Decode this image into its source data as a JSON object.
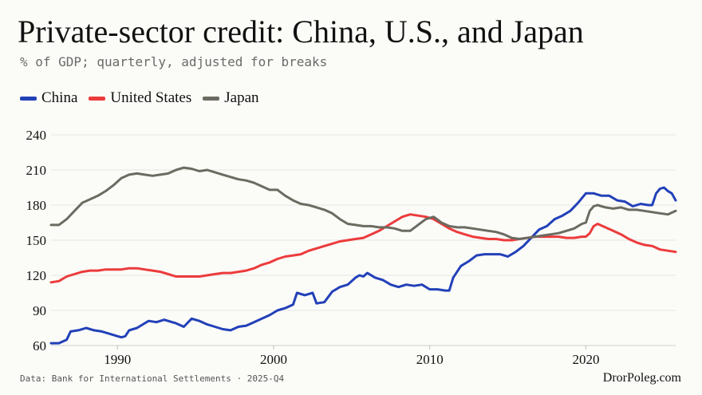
{
  "title": "Private-sector credit: China, U.S., and Japan",
  "subtitle": "% of GDP; quarterly, adjusted for breaks",
  "source": "Data: Bank for International Settlements · 2025-Q4",
  "brand": "DrorPoleg.com",
  "chart_data": {
    "type": "line",
    "xlim": [
      1985.75,
      2025.75
    ],
    "ylim": [
      60,
      240
    ],
    "yticks": [
      "60",
      "90",
      "120",
      "150",
      "180",
      "210",
      "240"
    ],
    "xticks": [
      "1990",
      "2000",
      "2010",
      "2020"
    ],
    "grid": "horizontal",
    "legend_position": "top-left",
    "series": [
      {
        "name": "China",
        "color": "#2240b8",
        "points": [
          [
            1985.75,
            62
          ],
          [
            1986.25,
            62
          ],
          [
            1986.75,
            65
          ],
          [
            1987,
            72
          ],
          [
            1987.5,
            73
          ],
          [
            1988,
            75
          ],
          [
            1988.5,
            73
          ],
          [
            1989,
            72
          ],
          [
            1989.5,
            70
          ],
          [
            1990,
            68
          ],
          [
            1990.25,
            67
          ],
          [
            1990.5,
            68
          ],
          [
            1990.75,
            73
          ],
          [
            1991.25,
            75
          ],
          [
            1991.75,
            79
          ],
          [
            1992,
            81
          ],
          [
            1992.5,
            80
          ],
          [
            1993,
            82
          ],
          [
            1993.5,
            80
          ],
          [
            1993.75,
            79
          ],
          [
            1994.25,
            76
          ],
          [
            1994.75,
            83
          ],
          [
            1995.25,
            81
          ],
          [
            1995.75,
            78
          ],
          [
            1996.25,
            76
          ],
          [
            1996.75,
            74
          ],
          [
            1997.25,
            73
          ],
          [
            1997.75,
            76
          ],
          [
            1998.25,
            77
          ],
          [
            1998.75,
            80
          ],
          [
            1999.25,
            83
          ],
          [
            1999.75,
            86
          ],
          [
            2000.25,
            90
          ],
          [
            2000.75,
            92
          ],
          [
            2001.25,
            95
          ],
          [
            2001.5,
            105
          ],
          [
            2002,
            103
          ],
          [
            2002.5,
            105
          ],
          [
            2002.75,
            96
          ],
          [
            2003.25,
            97
          ],
          [
            2003.75,
            106
          ],
          [
            2004.25,
            110
          ],
          [
            2004.75,
            112
          ],
          [
            2005.25,
            118
          ],
          [
            2005.5,
            120
          ],
          [
            2005.75,
            119
          ],
          [
            2006,
            122
          ],
          [
            2006.5,
            118
          ],
          [
            2007,
            116
          ],
          [
            2007.5,
            112
          ],
          [
            2008,
            110
          ],
          [
            2008.5,
            112
          ],
          [
            2009,
            111
          ],
          [
            2009.5,
            112
          ],
          [
            2010,
            108
          ],
          [
            2010.5,
            108
          ],
          [
            2011,
            107
          ],
          [
            2011.25,
            107
          ],
          [
            2011.5,
            118
          ],
          [
            2012,
            128
          ],
          [
            2012.5,
            132
          ],
          [
            2013,
            137
          ],
          [
            2013.5,
            138
          ],
          [
            2014,
            138
          ],
          [
            2014.5,
            138
          ],
          [
            2015,
            136
          ],
          [
            2015.5,
            140
          ],
          [
            2016,
            145
          ],
          [
            2016.5,
            152
          ],
          [
            2017,
            159
          ],
          [
            2017.5,
            162
          ],
          [
            2018,
            168
          ],
          [
            2018.5,
            171
          ],
          [
            2019,
            175
          ],
          [
            2019.5,
            182
          ],
          [
            2020,
            190
          ],
          [
            2020.5,
            190
          ],
          [
            2021,
            188
          ],
          [
            2021.5,
            188
          ],
          [
            2022,
            184
          ],
          [
            2022.5,
            183
          ],
          [
            2023,
            179
          ],
          [
            2023.5,
            181
          ],
          [
            2024,
            180
          ],
          [
            2024.25,
            180
          ],
          [
            2024.5,
            190
          ],
          [
            2024.75,
            194
          ],
          [
            2025,
            195
          ],
          [
            2025.25,
            192
          ],
          [
            2025.5,
            190
          ],
          [
            2025.75,
            184
          ]
        ]
      },
      {
        "name": "United States",
        "color": "#ec3b3b",
        "points": [
          [
            1985.75,
            114
          ],
          [
            1986.25,
            115
          ],
          [
            1986.75,
            119
          ],
          [
            1987.25,
            121
          ],
          [
            1987.75,
            123
          ],
          [
            1988.25,
            124
          ],
          [
            1988.75,
            124
          ],
          [
            1989.25,
            125
          ],
          [
            1989.75,
            125
          ],
          [
            1990.25,
            125
          ],
          [
            1990.75,
            126
          ],
          [
            1991.25,
            126
          ],
          [
            1991.75,
            125
          ],
          [
            1992.25,
            124
          ],
          [
            1992.75,
            123
          ],
          [
            1993.25,
            121
          ],
          [
            1993.75,
            119
          ],
          [
            1994.25,
            119
          ],
          [
            1994.75,
            119
          ],
          [
            1995.25,
            119
          ],
          [
            1995.75,
            120
          ],
          [
            1996.25,
            121
          ],
          [
            1996.75,
            122
          ],
          [
            1997.25,
            122
          ],
          [
            1997.75,
            123
          ],
          [
            1998.25,
            124
          ],
          [
            1998.75,
            126
          ],
          [
            1999.25,
            129
          ],
          [
            1999.75,
            131
          ],
          [
            2000.25,
            134
          ],
          [
            2000.75,
            136
          ],
          [
            2001.25,
            137
          ],
          [
            2001.75,
            138
          ],
          [
            2002.25,
            141
          ],
          [
            2002.75,
            143
          ],
          [
            2003.25,
            145
          ],
          [
            2003.75,
            147
          ],
          [
            2004.25,
            149
          ],
          [
            2004.75,
            150
          ],
          [
            2005.25,
            151
          ],
          [
            2005.75,
            152
          ],
          [
            2006.25,
            155
          ],
          [
            2006.75,
            158
          ],
          [
            2007.25,
            162
          ],
          [
            2007.75,
            166
          ],
          [
            2008.25,
            170
          ],
          [
            2008.75,
            172
          ],
          [
            2009.25,
            171
          ],
          [
            2009.75,
            170
          ],
          [
            2010.25,
            168
          ],
          [
            2010.75,
            164
          ],
          [
            2011.25,
            160
          ],
          [
            2011.75,
            157
          ],
          [
            2012.25,
            155
          ],
          [
            2012.75,
            153
          ],
          [
            2013.25,
            152
          ],
          [
            2013.75,
            151
          ],
          [
            2014.25,
            151
          ],
          [
            2014.75,
            150
          ],
          [
            2015.25,
            150
          ],
          [
            2015.75,
            151
          ],
          [
            2016.25,
            152
          ],
          [
            2016.75,
            153
          ],
          [
            2017.25,
            153
          ],
          [
            2017.75,
            153
          ],
          [
            2018.25,
            153
          ],
          [
            2018.75,
            152
          ],
          [
            2019.25,
            152
          ],
          [
            2019.75,
            153
          ],
          [
            2020,
            153
          ],
          [
            2020.25,
            156
          ],
          [
            2020.5,
            162
          ],
          [
            2020.75,
            164
          ],
          [
            2021.25,
            161
          ],
          [
            2021.75,
            158
          ],
          [
            2022.25,
            155
          ],
          [
            2022.75,
            151
          ],
          [
            2023.25,
            148
          ],
          [
            2023.75,
            146
          ],
          [
            2024.25,
            145
          ],
          [
            2024.75,
            142
          ],
          [
            2025.25,
            141
          ],
          [
            2025.75,
            140
          ]
        ]
      },
      {
        "name": "Japan",
        "color": "#6b6b61",
        "points": [
          [
            1985.75,
            163
          ],
          [
            1986.25,
            163
          ],
          [
            1986.75,
            168
          ],
          [
            1987.25,
            175
          ],
          [
            1987.75,
            182
          ],
          [
            1988.25,
            185
          ],
          [
            1988.75,
            188
          ],
          [
            1989.25,
            192
          ],
          [
            1989.75,
            197
          ],
          [
            1990.25,
            203
          ],
          [
            1990.75,
            206
          ],
          [
            1991.25,
            207
          ],
          [
            1991.75,
            206
          ],
          [
            1992.25,
            205
          ],
          [
            1992.75,
            206
          ],
          [
            1993.25,
            207
          ],
          [
            1993.75,
            210
          ],
          [
            1994.25,
            212
          ],
          [
            1994.75,
            211
          ],
          [
            1995.25,
            209
          ],
          [
            1995.75,
            210
          ],
          [
            1996.25,
            208
          ],
          [
            1996.75,
            206
          ],
          [
            1997.25,
            204
          ],
          [
            1997.75,
            202
          ],
          [
            1998.25,
            201
          ],
          [
            1998.75,
            199
          ],
          [
            1999.25,
            196
          ],
          [
            1999.75,
            193
          ],
          [
            2000.25,
            193
          ],
          [
            2000.75,
            188
          ],
          [
            2001.25,
            184
          ],
          [
            2001.75,
            181
          ],
          [
            2002.25,
            180
          ],
          [
            2002.75,
            178
          ],
          [
            2003.25,
            176
          ],
          [
            2003.75,
            173
          ],
          [
            2004.25,
            168
          ],
          [
            2004.75,
            164
          ],
          [
            2005.25,
            163
          ],
          [
            2005.75,
            162
          ],
          [
            2006.25,
            162
          ],
          [
            2006.75,
            161
          ],
          [
            2007.25,
            161
          ],
          [
            2007.75,
            160
          ],
          [
            2008.25,
            158
          ],
          [
            2008.75,
            158
          ],
          [
            2009.25,
            163
          ],
          [
            2009.75,
            168
          ],
          [
            2010.25,
            170
          ],
          [
            2010.75,
            165
          ],
          [
            2011.25,
            162
          ],
          [
            2011.75,
            161
          ],
          [
            2012.25,
            161
          ],
          [
            2012.75,
            160
          ],
          [
            2013.25,
            159
          ],
          [
            2013.75,
            158
          ],
          [
            2014.25,
            157
          ],
          [
            2014.75,
            155
          ],
          [
            2015.25,
            152
          ],
          [
            2015.75,
            151
          ],
          [
            2016.25,
            152
          ],
          [
            2016.75,
            153
          ],
          [
            2017.25,
            154
          ],
          [
            2017.75,
            155
          ],
          [
            2018.25,
            156
          ],
          [
            2018.75,
            158
          ],
          [
            2019.25,
            160
          ],
          [
            2019.75,
            164
          ],
          [
            2020,
            165
          ],
          [
            2020.25,
            175
          ],
          [
            2020.5,
            179
          ],
          [
            2020.75,
            180
          ],
          [
            2021.25,
            178
          ],
          [
            2021.75,
            177
          ],
          [
            2022.25,
            178
          ],
          [
            2022.75,
            176
          ],
          [
            2023.25,
            176
          ],
          [
            2023.75,
            175
          ],
          [
            2024.25,
            174
          ],
          [
            2024.75,
            173
          ],
          [
            2025.25,
            172
          ],
          [
            2025.75,
            175
          ]
        ]
      }
    ]
  }
}
